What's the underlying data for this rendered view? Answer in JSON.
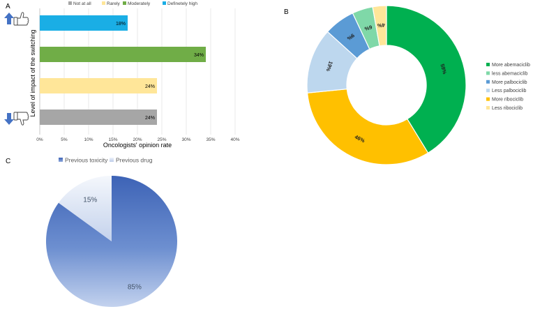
{
  "panels": {
    "a_label": "A",
    "b_label": "B",
    "c_label": "C"
  },
  "chart_data": [
    {
      "type": "bar",
      "orientation": "horizontal",
      "legend": [
        "Not at all",
        "Rarely",
        "Moderately",
        "Definetely high"
      ],
      "categories": [
        "Definetely high",
        "Moderately",
        "Rarely",
        "Not at all"
      ],
      "values": [
        18,
        34,
        24,
        24
      ],
      "value_labels": [
        "18%",
        "34%",
        "24%",
        "24%"
      ],
      "colors": [
        "#1aaee5",
        "#70ad47",
        "#ffe699",
        "#a6a6a6"
      ],
      "xlabel": "Oncologists' opinion rate",
      "ylabel": "Level of impact of the switching",
      "xlim": [
        0,
        40
      ],
      "xticks": [
        "0%",
        "5%",
        "10%",
        "15%",
        "20%",
        "25%",
        "30%",
        "35%",
        "40%"
      ],
      "legend_position": "top"
    },
    {
      "type": "pie",
      "style": "donut",
      "labels": [
        "More abemaciclib",
        "less abemaciclib",
        "More palbociclib",
        "Less palbociclib",
        "More ribociclib",
        "Less ribociclib"
      ],
      "values": [
        59,
        6,
        9,
        19,
        46,
        4
      ],
      "value_labels": [
        "59%",
        "6%",
        "9%",
        "19%",
        "46%",
        "4%"
      ],
      "colors": [
        "#00b050",
        "#7fd8a8",
        "#5b9bd5",
        "#bdd7ee",
        "#ffc000",
        "#ffe699"
      ],
      "legend_position": "right"
    },
    {
      "type": "pie",
      "labels": [
        "Previous toxicity",
        "Previous drug"
      ],
      "values": [
        85,
        15
      ],
      "value_labels": [
        "85%",
        "15%"
      ],
      "colors": [
        "#3a62b8",
        "#c9d6ee"
      ],
      "legend_position": "top"
    }
  ]
}
